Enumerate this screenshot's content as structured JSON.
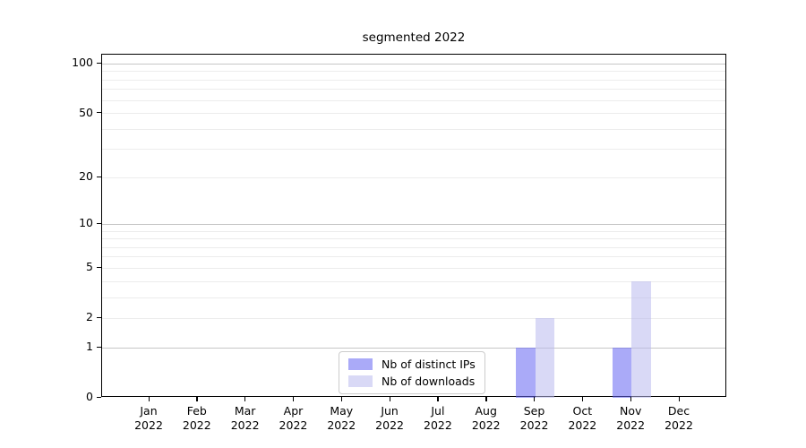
{
  "chart_data": {
    "type": "bar",
    "title": "segmented 2022",
    "yscale": "log1p",
    "ylim": [
      0,
      113
    ],
    "yticks": [
      0,
      1,
      2,
      5,
      10,
      20,
      50,
      100
    ],
    "gridlines_light": [
      2,
      3,
      4,
      5,
      6,
      7,
      8,
      9,
      20,
      30,
      40,
      50,
      60,
      70,
      80,
      90
    ],
    "gridlines_dark": [
      1,
      10,
      100
    ],
    "grid": true,
    "legend_position": "lower center",
    "categories": [
      {
        "month": "Jan",
        "year": "2022"
      },
      {
        "month": "Feb",
        "year": "2022"
      },
      {
        "month": "Mar",
        "year": "2022"
      },
      {
        "month": "Apr",
        "year": "2022"
      },
      {
        "month": "May",
        "year": "2022"
      },
      {
        "month": "Jun",
        "year": "2022"
      },
      {
        "month": "Jul",
        "year": "2022"
      },
      {
        "month": "Aug",
        "year": "2022"
      },
      {
        "month": "Sep",
        "year": "2022"
      },
      {
        "month": "Oct",
        "year": "2022"
      },
      {
        "month": "Nov",
        "year": "2022"
      },
      {
        "month": "Dec",
        "year": "2022"
      }
    ],
    "series": [
      {
        "name": "Nb of distinct IPs",
        "color": "#6464f3",
        "fill_opacity": 0.55,
        "values": [
          0,
          0,
          0,
          0,
          0,
          0,
          0,
          0,
          1,
          0,
          1,
          0
        ]
      },
      {
        "name": "Nb of downloads",
        "color": "#b9b9ef",
        "fill_opacity": 0.55,
        "values": [
          0,
          0,
          0,
          0,
          0,
          0,
          0,
          0,
          2,
          0,
          4,
          0
        ]
      }
    ]
  },
  "colors": {
    "background": "#ffffff",
    "grid_light": "#ececec",
    "grid_dark": "#c6c6c6",
    "axis": "#000000",
    "text": "#000000",
    "legend_border": "#cccccc"
  }
}
